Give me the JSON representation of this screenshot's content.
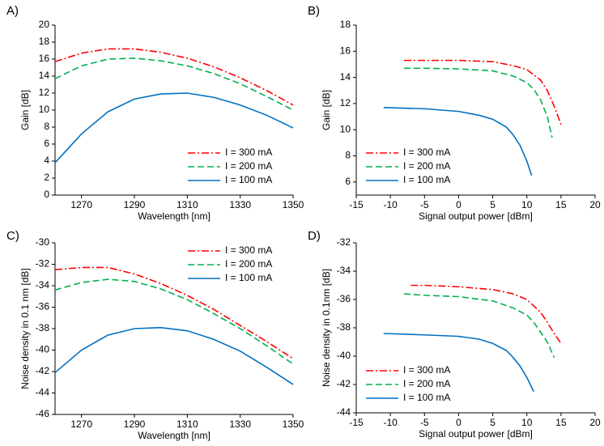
{
  "chart_data": [
    {
      "type": "line",
      "label": "A)",
      "xlabel": "Wavelength [nm]",
      "ylabel": "Gain [dB]",
      "xlim": [
        1260,
        1350
      ],
      "xticks": [
        1270,
        1290,
        1310,
        1330,
        1350
      ],
      "ylim": [
        0,
        20
      ],
      "yticks": [
        0,
        2,
        4,
        6,
        8,
        10,
        12,
        14,
        16,
        18,
        20
      ],
      "legend": "lower right",
      "series": [
        {
          "name": "I = 300 mA",
          "color": "#ff0000",
          "style": "dashdot",
          "x": [
            1260,
            1270,
            1280,
            1290,
            1300,
            1310,
            1320,
            1330,
            1340,
            1350
          ],
          "values": [
            15.7,
            16.7,
            17.2,
            17.2,
            16.8,
            16.1,
            15.1,
            13.8,
            12.3,
            10.6
          ]
        },
        {
          "name": "I = 200 mA",
          "color": "#00b050",
          "style": "dashed",
          "x": [
            1260,
            1270,
            1280,
            1290,
            1300,
            1310,
            1320,
            1330,
            1340,
            1350
          ],
          "values": [
            13.7,
            15.2,
            16.0,
            16.1,
            15.8,
            15.2,
            14.3,
            13.1,
            11.6,
            10.0
          ]
        },
        {
          "name": "I = 100 mA",
          "color": "#0070c0",
          "style": "solid",
          "x": [
            1260,
            1270,
            1280,
            1290,
            1300,
            1310,
            1320,
            1330,
            1340,
            1350
          ],
          "values": [
            3.8,
            7.2,
            9.8,
            11.3,
            11.9,
            12.0,
            11.5,
            10.6,
            9.4,
            7.9
          ]
        }
      ]
    },
    {
      "type": "line",
      "label": "B)",
      "xlabel": "Signal output power [dBm]",
      "ylabel": "Gain [dB]",
      "xlim": [
        -15,
        20
      ],
      "xticks": [
        -15,
        -10,
        -5,
        0,
        5,
        10,
        15,
        20
      ],
      "ylim": [
        5,
        18
      ],
      "yticks": [
        6,
        8,
        10,
        12,
        14,
        16,
        18
      ],
      "legend": "lower left",
      "series": [
        {
          "name": "I = 300 mA",
          "color": "#ff0000",
          "style": "dashdot",
          "x": [
            -8,
            -5,
            0,
            5,
            8,
            10,
            12,
            13,
            14,
            15
          ],
          "values": [
            15.3,
            15.3,
            15.3,
            15.2,
            14.9,
            14.6,
            13.8,
            13.0,
            11.8,
            10.4
          ]
        },
        {
          "name": "I = 200 mA",
          "color": "#00b050",
          "style": "dashed",
          "x": [
            -8,
            -5,
            0,
            5,
            8,
            10,
            11,
            12,
            13,
            13.7
          ],
          "values": [
            14.7,
            14.7,
            14.65,
            14.5,
            14.1,
            13.6,
            13.1,
            12.3,
            11.0,
            9.4
          ]
        },
        {
          "name": "I = 100 mA",
          "color": "#0070c0",
          "style": "solid",
          "x": [
            -11,
            -5,
            0,
            3,
            5,
            7,
            8,
            9,
            10,
            10.7
          ],
          "values": [
            11.7,
            11.6,
            11.4,
            11.1,
            10.8,
            10.2,
            9.6,
            8.8,
            7.6,
            6.5
          ]
        }
      ]
    },
    {
      "type": "line",
      "label": "C)",
      "xlabel": "Wavelength [nm]",
      "ylabel": "Noise density in 0.1 nm [dB]",
      "xlim": [
        1260,
        1350
      ],
      "xticks": [
        1270,
        1290,
        1310,
        1330,
        1350
      ],
      "ylim": [
        -46,
        -30
      ],
      "yticks": [
        -46,
        -44,
        -42,
        -40,
        -38,
        -36,
        -34,
        -32,
        -30
      ],
      "legend": "upper right",
      "series": [
        {
          "name": "I = 300 mA",
          "color": "#ff0000",
          "style": "dashdot",
          "x": [
            1260,
            1270,
            1280,
            1290,
            1300,
            1310,
            1320,
            1330,
            1340,
            1350
          ],
          "values": [
            -32.5,
            -32.3,
            -32.3,
            -32.9,
            -33.8,
            -34.9,
            -36.2,
            -37.7,
            -39.2,
            -40.8
          ]
        },
        {
          "name": "I = 200 mA",
          "color": "#00b050",
          "style": "dashed",
          "x": [
            1260,
            1270,
            1280,
            1290,
            1300,
            1310,
            1320,
            1330,
            1340,
            1350
          ],
          "values": [
            -34.4,
            -33.7,
            -33.4,
            -33.6,
            -34.3,
            -35.3,
            -36.6,
            -38.0,
            -39.6,
            -41.3
          ]
        },
        {
          "name": "I = 100 mA",
          "color": "#0070c0",
          "style": "solid",
          "x": [
            1260,
            1270,
            1280,
            1290,
            1300,
            1310,
            1320,
            1330,
            1340,
            1350
          ],
          "values": [
            -42.1,
            -40.0,
            -38.6,
            -38.0,
            -37.9,
            -38.2,
            -39.0,
            -40.1,
            -41.6,
            -43.2
          ]
        }
      ]
    },
    {
      "type": "line",
      "label": "D)",
      "xlabel": "Signal output power [dBm]",
      "ylabel": "Noise density in 0.1nm [dB]",
      "xlim": [
        -15,
        20
      ],
      "xticks": [
        -15,
        -10,
        -5,
        0,
        5,
        10,
        15,
        20
      ],
      "ylim": [
        -44,
        -32
      ],
      "yticks": [
        -44,
        -42,
        -40,
        -38,
        -36,
        -34,
        -32
      ],
      "legend": "lower left",
      "series": [
        {
          "name": "I = 300 mA",
          "color": "#ff0000",
          "style": "dashdot",
          "x": [
            -7,
            -5,
            0,
            5,
            8,
            10,
            12,
            13,
            14,
            15
          ],
          "values": [
            -35.0,
            -35.0,
            -35.1,
            -35.3,
            -35.6,
            -36.0,
            -36.9,
            -37.6,
            -38.4,
            -39.1
          ]
        },
        {
          "name": "I = 200 mA",
          "color": "#00b050",
          "style": "dashed",
          "x": [
            -8,
            -5,
            0,
            5,
            8,
            10,
            11,
            12,
            13,
            14
          ],
          "values": [
            -35.6,
            -35.7,
            -35.8,
            -36.1,
            -36.6,
            -37.1,
            -37.6,
            -38.3,
            -39.0,
            -40.1
          ]
        },
        {
          "name": "I = 100 mA",
          "color": "#0070c0",
          "style": "solid",
          "x": [
            -11,
            -5,
            0,
            3,
            5,
            7,
            8,
            9,
            10,
            11
          ],
          "values": [
            -38.4,
            -38.5,
            -38.6,
            -38.8,
            -39.1,
            -39.6,
            -40.1,
            -40.7,
            -41.5,
            -42.5
          ]
        }
      ]
    }
  ]
}
